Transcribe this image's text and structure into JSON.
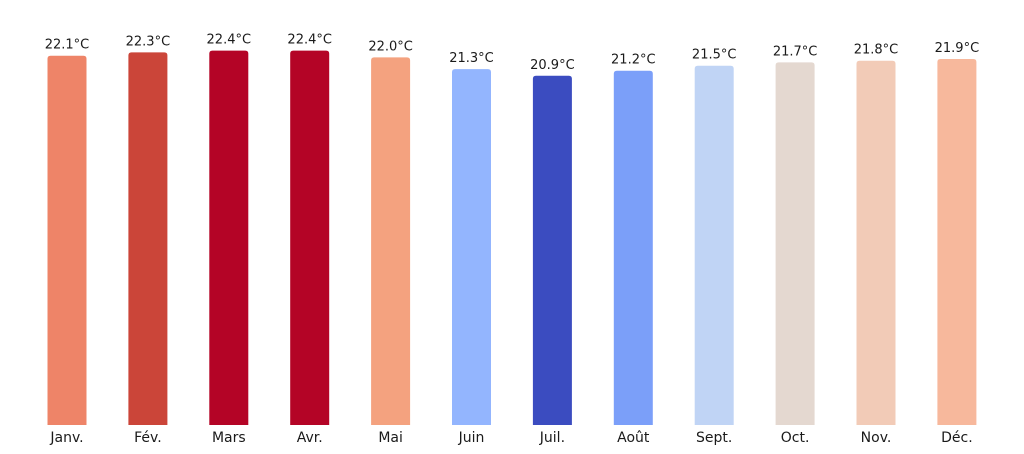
{
  "chart_data": {
    "type": "bar",
    "title": "",
    "xlabel": "",
    "ylabel": "",
    "unit": "°C",
    "categories": [
      "Janv.",
      "Fév.",
      "Mars",
      "Avr.",
      "Mai",
      "Juin",
      "Juil.",
      "Août",
      "Sept.",
      "Oct.",
      "Nov.",
      "Déc."
    ],
    "values": [
      22.1,
      22.3,
      22.4,
      22.4,
      22.0,
      21.3,
      20.9,
      21.2,
      21.5,
      21.7,
      21.8,
      21.9
    ],
    "value_labels": [
      "22.1°C",
      "22.3°C",
      "22.4°C",
      "22.4°C",
      "22.0°C",
      "21.3°C",
      "20.9°C",
      "21.2°C",
      "21.5°C",
      "21.7°C",
      "21.8°C",
      "21.9°C"
    ],
    "colors": [
      "#ee8468",
      "#cb4539",
      "#b40426",
      "#b40426",
      "#f4a27f",
      "#93b5fe",
      "#3b4cc0",
      "#7b9ff9",
      "#c0d4f5",
      "#e4d8d0",
      "#f2cbb7",
      "#f7b89c"
    ],
    "baseline": 0,
    "ylim": [
      0,
      22.8
    ],
    "grid": false,
    "legend": "none"
  }
}
